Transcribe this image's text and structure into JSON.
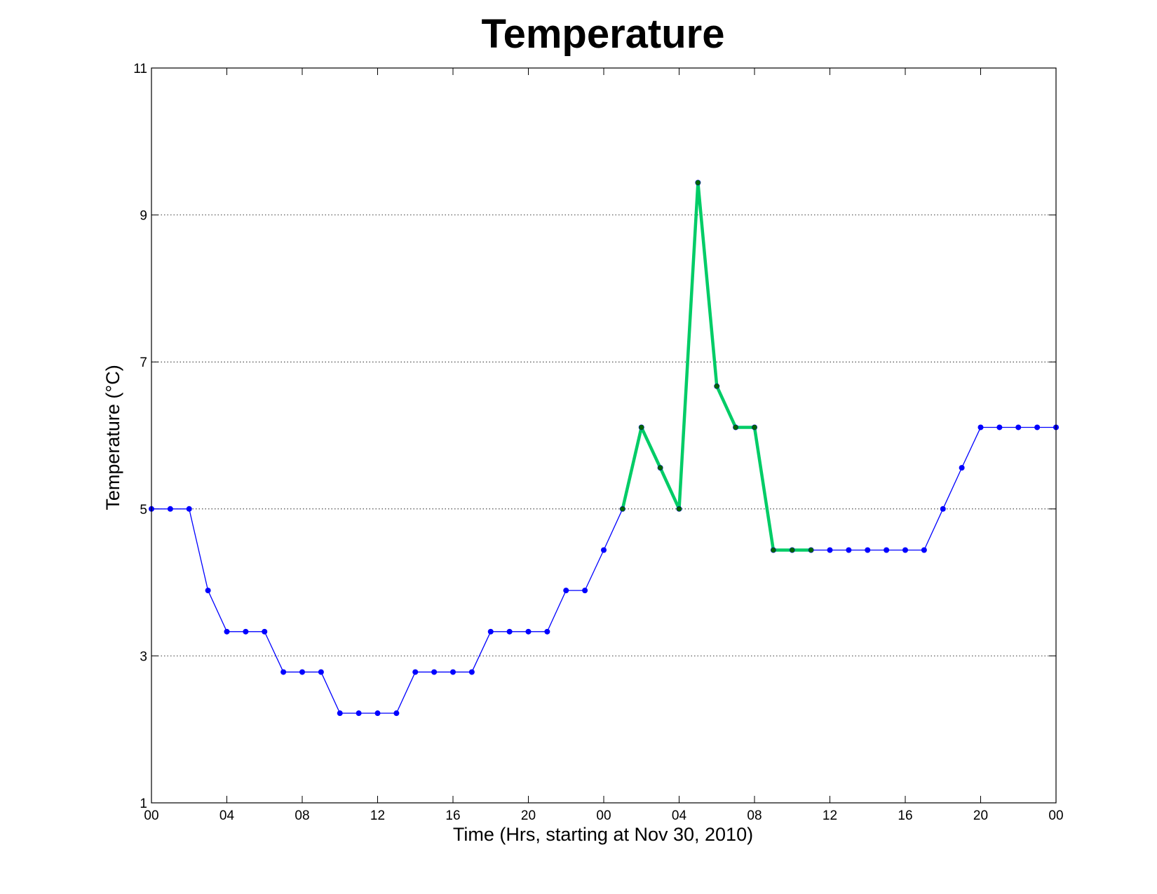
{
  "chart_data": {
    "type": "line",
    "title": "Temperature",
    "xlabel": "Time (Hrs, starting at Nov 30, 2010)",
    "ylabel": "Temperature (°C)",
    "xlim": [
      0,
      48
    ],
    "ylim": [
      1,
      11
    ],
    "yticks": [
      1,
      3,
      5,
      7,
      9,
      11
    ],
    "xticks": [
      0,
      4,
      8,
      12,
      16,
      20,
      24,
      28,
      32,
      36,
      40,
      44,
      48
    ],
    "xtick_labels": [
      "00",
      "04",
      "08",
      "12",
      "16",
      "20",
      "00",
      "04",
      "08",
      "12",
      "16",
      "20",
      "00"
    ],
    "grid": "horizontal dotted",
    "series": [
      {
        "color": "#0000ff",
        "x": [
          0,
          1,
          2,
          3,
          4,
          5,
          6,
          7,
          8,
          9,
          10,
          11,
          12,
          13,
          14,
          15,
          16,
          17,
          18,
          19,
          20,
          21,
          22,
          23,
          24,
          25,
          26,
          27,
          28,
          29,
          30,
          31,
          32,
          33,
          34,
          35,
          36,
          37,
          38,
          39,
          40,
          41,
          42,
          43,
          44,
          45,
          46,
          47,
          48
        ],
        "y": [
          5.0,
          5.0,
          5.0,
          3.89,
          3.33,
          3.33,
          3.33,
          2.78,
          2.78,
          2.78,
          2.22,
          2.22,
          2.22,
          2.22,
          2.78,
          2.78,
          2.78,
          2.78,
          3.33,
          3.33,
          3.33,
          3.33,
          3.89,
          3.89,
          4.44,
          5.0,
          6.11,
          5.56,
          5.0,
          9.44,
          6.67,
          6.11,
          6.11,
          4.44,
          4.44,
          4.44,
          4.44,
          4.44,
          4.44,
          4.44,
          4.44,
          4.44,
          5.0,
          5.56,
          6.11,
          6.11,
          6.11,
          6.11,
          6.11
        ]
      },
      {
        "color": "#00cc66",
        "x": [
          25,
          26,
          27,
          28,
          29,
          30,
          31,
          32,
          33,
          34,
          35
        ],
        "y": [
          5.0,
          6.11,
          5.56,
          5.0,
          9.44,
          6.67,
          6.11,
          6.11,
          4.44,
          4.44,
          4.44
        ]
      }
    ]
  }
}
